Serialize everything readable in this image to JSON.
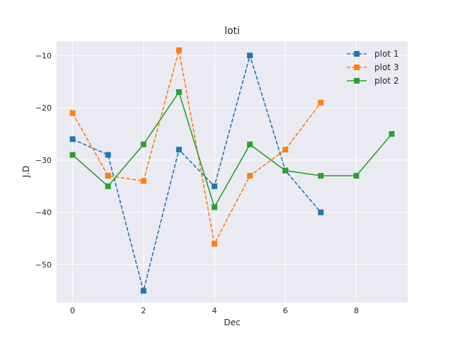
{
  "chart_data": {
    "type": "line",
    "title": "loti",
    "xlabel": "Dec",
    "ylabel": "J.D",
    "xlim": [
      -0.45,
      9.45
    ],
    "ylim": [
      -57.25,
      -7.25
    ],
    "xticks": [
      0,
      2,
      4,
      6,
      8
    ],
    "yticks": [
      -50,
      -40,
      -30,
      -20,
      -10
    ],
    "xtick_labels": [
      "0",
      "2",
      "4",
      "6",
      "8"
    ],
    "ytick_labels": [
      "−50",
      "−40",
      "−30",
      "−20",
      "−10"
    ],
    "grid": true,
    "legend_position": "top-right",
    "series": [
      {
        "name": "plot 1",
        "color": "#1f77b4",
        "style": "dashed",
        "marker": "square",
        "x": [
          0,
          1,
          2,
          3,
          4,
          5,
          6,
          7
        ],
        "y": [
          -26,
          -29,
          -55,
          -28,
          -35,
          -10,
          -32,
          -40
        ]
      },
      {
        "name": "plot 3",
        "color": "#ff7f0e",
        "style": "dashed",
        "marker": "square",
        "x": [
          0,
          1,
          2,
          3,
          4,
          5,
          6,
          7
        ],
        "y": [
          -21,
          -33,
          -34,
          -9,
          -46,
          -33,
          -28,
          -19
        ]
      },
      {
        "name": "plot 2",
        "color": "#2ca02c",
        "style": "solid",
        "marker": "square",
        "x": [
          0,
          1,
          2,
          3,
          4,
          5,
          6,
          7,
          8,
          9
        ],
        "y": [
          -29,
          -35,
          -27,
          -17,
          -39,
          -27,
          -32,
          -33,
          -33,
          -25
        ]
      }
    ]
  }
}
